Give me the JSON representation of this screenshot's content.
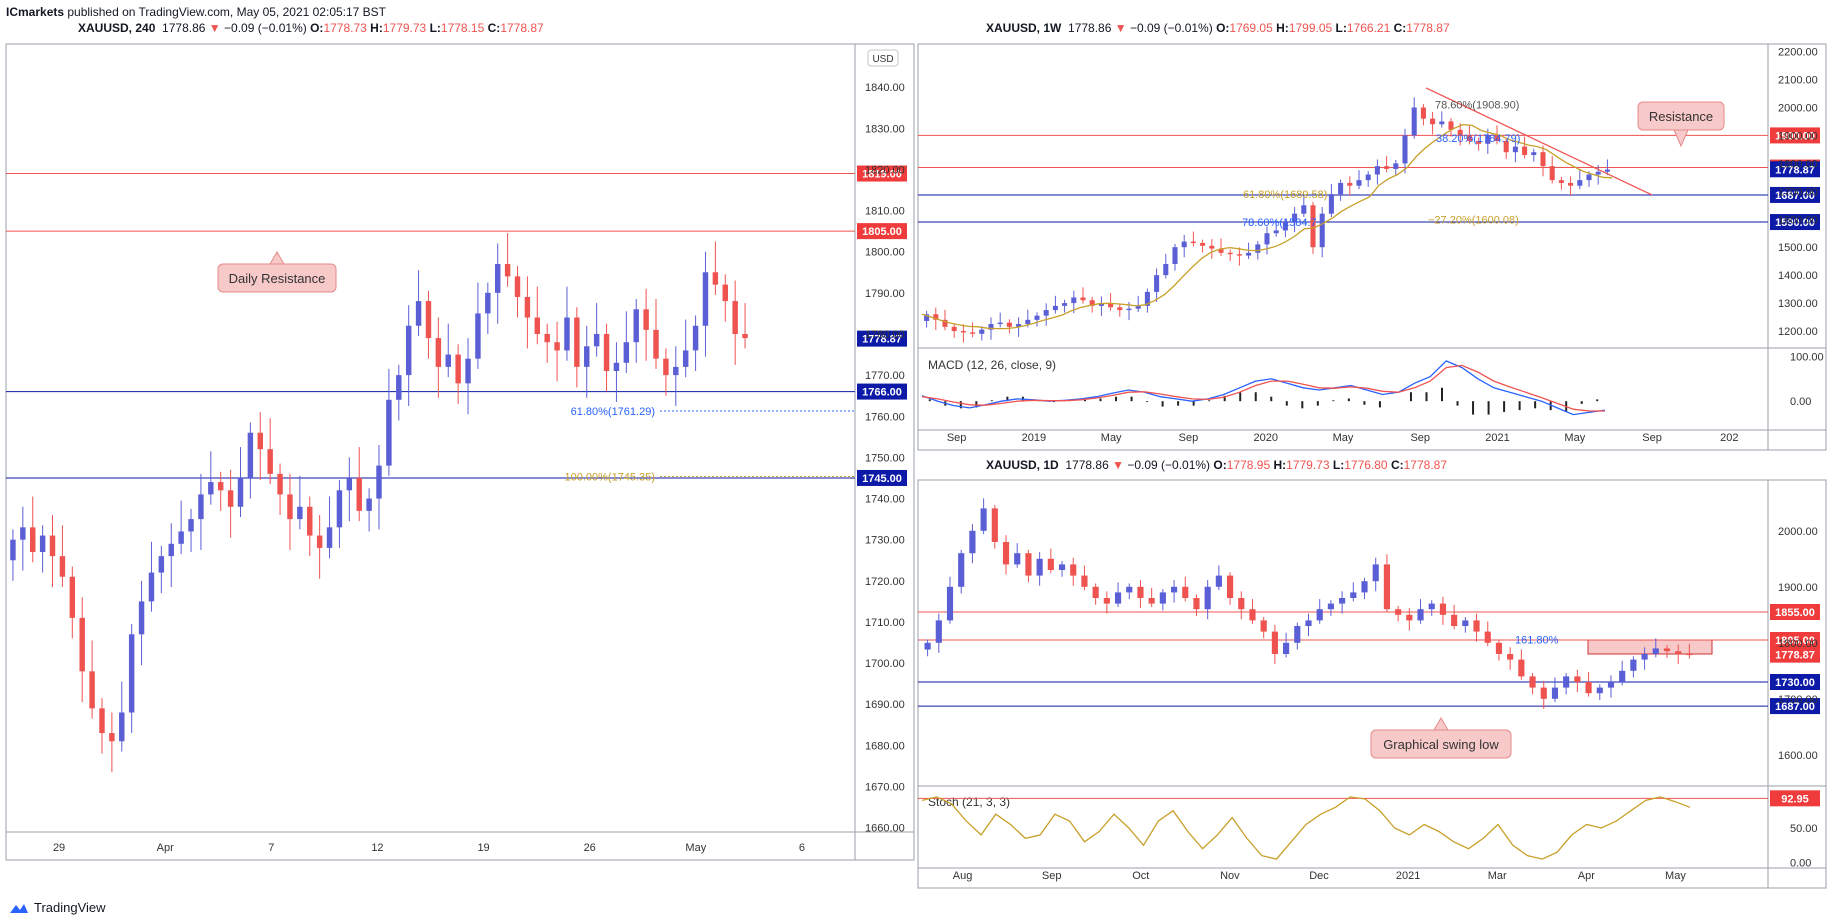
{
  "header": {
    "publisher": "ICmarkets",
    "text": " published on TradingView.com, May 05, 2021 02:05:17 BST"
  },
  "branding": {
    "name": "TradingView",
    "logo_icon": "tradingview-cloud-icon"
  },
  "legends": [
    {
      "symbol": "XAUUSD, 240",
      "last": "1778.86",
      "change": "−0.09 (−0.01%)",
      "o": "1778.73",
      "h": "1779.73",
      "l": "1778.15",
      "c": "1778.87"
    },
    {
      "symbol": "XAUUSD, 1W",
      "last": "1778.86",
      "change": "−0.09 (−0.01%)",
      "o": "1769.05",
      "h": "1799.05",
      "l": "1766.21",
      "c": "1778.87"
    },
    {
      "symbol": "XAUUSD, 1D",
      "last": "1778.86",
      "change": "−0.09 (−0.01%)",
      "o": "1778.95",
      "h": "1779.73",
      "l": "1776.80",
      "c": "1778.87"
    }
  ],
  "colors": {
    "up": "#5b5fd6",
    "down": "#ef5350",
    "blue_line": "#0d1aa8",
    "red_line": "#ef5350",
    "ma": "#c8a02a",
    "macd": "#2962ff",
    "signal": "#ef5350",
    "stoch": "#c8a02a",
    "callout_bg": "#f7c9c9",
    "callout_border": "#e58a8a"
  },
  "chart_data": [
    {
      "type": "candlestick",
      "timeframe": "240",
      "currency_badge": "USD",
      "x_ticks": [
        "29",
        "Apr",
        "7",
        "12",
        "19",
        "26",
        "May",
        "6"
      ],
      "y_ticks": [
        1660,
        1670,
        1680,
        1690,
        1700,
        1710,
        1720,
        1730,
        1740,
        1750,
        1760,
        1770,
        1780,
        1790,
        1800,
        1810,
        1820,
        1830,
        1840
      ],
      "ylim": [
        1657,
        1850
      ],
      "price_labels": [
        {
          "value": 1819.0,
          "text": "1819.00",
          "color": "red"
        },
        {
          "value": 1805.0,
          "text": "1805.00",
          "color": "red"
        },
        {
          "value": 1778.87,
          "text": "1778.87",
          "color": "blue"
        },
        {
          "value": 1766.0,
          "text": "1766.00",
          "color": "blue"
        },
        {
          "value": 1745.0,
          "text": "1745.00",
          "color": "blue"
        }
      ],
      "fib_labels": [
        {
          "value": 1761.29,
          "text": "61.80%(1761.29)"
        },
        {
          "value": 1745.35,
          "text": "100.00%(1745.35)"
        }
      ],
      "annotations": [
        "Daily Resistance"
      ],
      "close_path": [
        1730,
        1733,
        1727,
        1731,
        1726,
        1721,
        1711,
        1698,
        1689,
        1683,
        1681,
        1688,
        1707,
        1715,
        1722,
        1726,
        1729,
        1732,
        1735,
        1741,
        1744,
        1742,
        1738,
        1745,
        1756,
        1752,
        1746,
        1741,
        1735,
        1738,
        1731,
        1728,
        1733,
        1742,
        1745,
        1737,
        1740,
        1748,
        1764,
        1770,
        1782,
        1788,
        1779,
        1772,
        1775,
        1768,
        1774,
        1785,
        1790,
        1797,
        1794,
        1789,
        1784,
        1780,
        1778,
        1776,
        1784,
        1772,
        1777,
        1780,
        1771,
        1773,
        1778,
        1786,
        1781,
        1774,
        1770,
        1772,
        1776,
        1782,
        1795,
        1792,
        1788,
        1780,
        1779
      ]
    },
    {
      "type": "candlestick",
      "timeframe": "1W",
      "y_ticks": [
        1200,
        1300,
        1400,
        1500,
        1600,
        1700,
        1800,
        1900,
        2000,
        2100,
        2200
      ],
      "ylim": [
        1150,
        2220
      ],
      "x_ticks": [
        "Sep",
        "2019",
        "May",
        "Sep",
        "2020",
        "May",
        "Sep",
        "2021",
        "May",
        "Sep",
        "202"
      ],
      "price_labels": [
        {
          "value": 1900.0,
          "text": "1900.00",
          "color": "red"
        },
        {
          "value": 1785.0,
          "text": "1785.00",
          "color": "red"
        },
        {
          "value": 1778.87,
          "text": "1778.87",
          "color": "blue"
        },
        {
          "value": 1687.0,
          "text": "1687.00",
          "color": "blue"
        },
        {
          "value": 1590.0,
          "text": "1590.00",
          "color": "blue"
        }
      ],
      "fib_labels": [
        {
          "text": "78.60%(1908.90)"
        },
        {
          "text": "38.20%(1784.79)"
        },
        {
          "text": "61.80%(1689.58)"
        },
        {
          "text": "78.60%(1584.7"
        },
        {
          "text": "−27.20%(1600.08)"
        }
      ],
      "annotations": [
        "Resistance"
      ],
      "close_path": [
        1260,
        1240,
        1215,
        1200,
        1195,
        1190,
        1205,
        1225,
        1230,
        1215,
        1225,
        1240,
        1255,
        1275,
        1290,
        1300,
        1320,
        1310,
        1290,
        1300,
        1285,
        1275,
        1280,
        1290,
        1340,
        1400,
        1440,
        1500,
        1520,
        1515,
        1505,
        1495,
        1480,
        1475,
        1470,
        1480,
        1510,
        1550,
        1560,
        1590,
        1620,
        1650,
        1500,
        1620,
        1690,
        1730,
        1720,
        1740,
        1760,
        1790,
        1780,
        1800,
        1900,
        2000,
        1960,
        1940,
        1950,
        1920,
        1900,
        1880,
        1870,
        1900,
        1880,
        1840,
        1860,
        1830,
        1840,
        1790,
        1740,
        1730,
        1720,
        1740,
        1760,
        1770,
        1778
      ],
      "indicator": {
        "name": "MACD (12, 26, close, 9)",
        "y_ticks": [
          100,
          0
        ],
        "ylim": [
          -60,
          110
        ],
        "macd": [
          12,
          0,
          -10,
          -15,
          -8,
          0,
          5,
          3,
          0,
          2,
          5,
          10,
          18,
          25,
          20,
          10,
          5,
          0,
          5,
          15,
          30,
          45,
          50,
          40,
          30,
          25,
          30,
          35,
          25,
          15,
          20,
          40,
          55,
          90,
          75,
          50,
          30,
          20,
          10,
          0,
          -15,
          -30,
          -25,
          -20
        ],
        "signal": [
          10,
          5,
          -2,
          -8,
          -9,
          -5,
          0,
          2,
          1,
          1,
          3,
          7,
          13,
          20,
          21,
          16,
          10,
          5,
          4,
          9,
          20,
          35,
          45,
          45,
          38,
          30,
          29,
          32,
          29,
          22,
          20,
          30,
          45,
          75,
          80,
          65,
          45,
          32,
          20,
          8,
          -5,
          -18,
          -22,
          -22
        ]
      }
    },
    {
      "type": "candlestick",
      "timeframe": "1D",
      "y_ticks": [
        1600,
        1700,
        1800,
        1900,
        2000
      ],
      "ylim": [
        1555,
        2080
      ],
      "x_ticks": [
        "Aug",
        "Sep",
        "Oct",
        "Nov",
        "Dec",
        "2021",
        "Mar",
        "Apr",
        "May"
      ],
      "price_labels": [
        {
          "value": 1855.0,
          "text": "1855.00",
          "color": "red"
        },
        {
          "value": 1805.0,
          "text": "1805.00",
          "color": "red"
        },
        {
          "value": 1778.87,
          "text": "1778.87",
          "color": "red"
        },
        {
          "value": 1730.0,
          "text": "1730.00",
          "color": "blue"
        },
        {
          "value": 1687.0,
          "text": "1687.00",
          "color": "blue"
        }
      ],
      "fib_labels": [
        {
          "text": "161.80%"
        }
      ],
      "annotations": [
        "Graphical swing low"
      ],
      "close_path": [
        1800,
        1840,
        1900,
        1960,
        2000,
        2040,
        1980,
        1940,
        1960,
        1920,
        1950,
        1930,
        1940,
        1920,
        1900,
        1880,
        1870,
        1890,
        1900,
        1880,
        1870,
        1890,
        1900,
        1880,
        1860,
        1900,
        1920,
        1880,
        1860,
        1840,
        1820,
        1780,
        1800,
        1830,
        1840,
        1860,
        1870,
        1880,
        1890,
        1910,
        1940,
        1860,
        1850,
        1840,
        1860,
        1870,
        1850,
        1830,
        1840,
        1820,
        1800,
        1780,
        1770,
        1740,
        1720,
        1700,
        1720,
        1740,
        1730,
        1710,
        1720,
        1730,
        1750,
        1770,
        1780,
        1790,
        1785,
        1780,
        1778
      ],
      "indicator": {
        "name": "Stoch (21, 3, 3)",
        "y_ticks": [
          92.95,
          50.0,
          0.0
        ],
        "tick_texts": [
          "92.95",
          "50.00",
          "0.00"
        ],
        "ylim": [
          -5,
          105
        ],
        "k": [
          90,
          95,
          85,
          60,
          40,
          70,
          55,
          35,
          40,
          70,
          60,
          30,
          45,
          70,
          50,
          25,
          60,
          75,
          45,
          20,
          40,
          65,
          35,
          10,
          5,
          30,
          55,
          70,
          80,
          95,
          92,
          75,
          50,
          40,
          55,
          45,
          30,
          20,
          35,
          55,
          25,
          10,
          5,
          15,
          40,
          55,
          50,
          60,
          75,
          90,
          95,
          88,
          80
        ]
      }
    }
  ]
}
